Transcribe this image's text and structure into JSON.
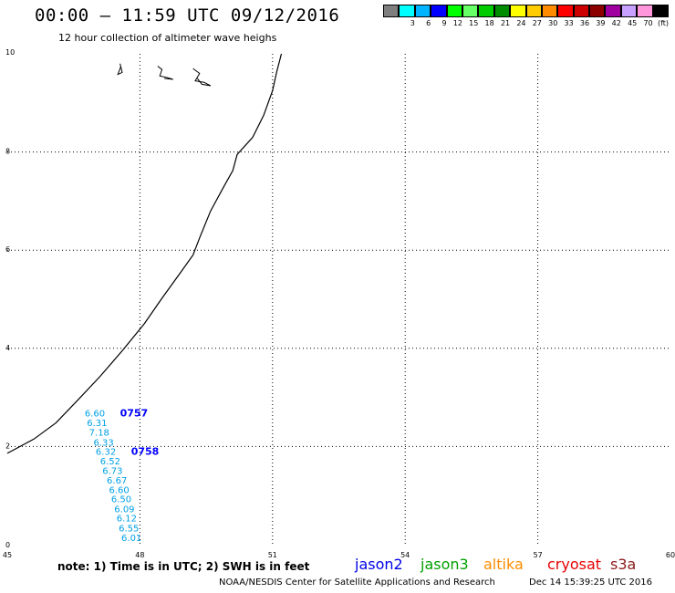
{
  "title": "00:00 — 11:59 UTC 09/12/2016",
  "subtitle": "12 hour collection of altimeter wave heighs",
  "colorbar": {
    "unit": "(ft)",
    "steps": [
      {
        "label": "",
        "color": "#7f7f7f"
      },
      {
        "label": "3",
        "color": "#00ffff"
      },
      {
        "label": "6",
        "color": "#00b4ff"
      },
      {
        "label": "9",
        "color": "#0000ff"
      },
      {
        "label": "12",
        "color": "#00ff00"
      },
      {
        "label": "15",
        "color": "#66ff66"
      },
      {
        "label": "18",
        "color": "#00cc00"
      },
      {
        "label": "21",
        "color": "#008c00"
      },
      {
        "label": "24",
        "color": "#ffff00"
      },
      {
        "label": "27",
        "color": "#ffcc00"
      },
      {
        "label": "30",
        "color": "#ff8c00"
      },
      {
        "label": "33",
        "color": "#ff0000"
      },
      {
        "label": "36",
        "color": "#cc0000"
      },
      {
        "label": "39",
        "color": "#8c0000"
      },
      {
        "label": "42",
        "color": "#a000a0"
      },
      {
        "label": "45",
        "color": "#c8a0ff"
      },
      {
        "label": "70",
        "color": "#ff96dc"
      },
      {
        "label": "(ft)",
        "color": "#000000"
      }
    ]
  },
  "map": {
    "lon_ticks": [
      "45",
      "48",
      "51",
      "54",
      "57",
      "60"
    ],
    "lat_ticks": [
      "0",
      "2",
      "4",
      "6",
      "8",
      "10"
    ],
    "grid": "dotted",
    "coastline": [
      [
        45.0,
        1.86
      ],
      [
        45.6,
        2.15
      ],
      [
        46.1,
        2.48
      ],
      [
        46.6,
        2.95
      ],
      [
        47.1,
        3.43
      ],
      [
        47.6,
        3.95
      ],
      [
        48.1,
        4.5
      ],
      [
        48.5,
        5.02
      ],
      [
        48.9,
        5.52
      ],
      [
        49.2,
        5.9
      ],
      [
        49.35,
        6.25
      ],
      [
        49.6,
        6.8
      ],
      [
        49.9,
        7.3
      ],
      [
        50.1,
        7.62
      ],
      [
        50.2,
        7.95
      ],
      [
        50.55,
        8.3
      ],
      [
        50.8,
        8.75
      ],
      [
        51.0,
        9.25
      ],
      [
        51.1,
        9.65
      ],
      [
        51.2,
        10.0
      ]
    ],
    "islands": [
      [
        [
          47.55,
          9.8
        ],
        [
          47.6,
          9.62
        ],
        [
          47.5,
          9.58
        ],
        [
          47.57,
          9.75
        ]
      ],
      [
        [
          48.4,
          9.75
        ],
        [
          48.5,
          9.68
        ],
        [
          48.45,
          9.55
        ],
        [
          48.6,
          9.52
        ],
        [
          48.75,
          9.48
        ],
        [
          48.55,
          9.5
        ]
      ],
      [
        [
          49.2,
          9.7
        ],
        [
          49.35,
          9.6
        ],
        [
          49.25,
          9.45
        ],
        [
          49.45,
          9.42
        ],
        [
          49.6,
          9.35
        ],
        [
          49.4,
          9.38
        ],
        [
          49.3,
          9.5
        ]
      ]
    ]
  },
  "observations": {
    "color": "#00a0e6",
    "values": [
      {
        "swh": "6.60",
        "lon": 46.75,
        "lat": 2.61
      },
      {
        "swh": "6.31",
        "lon": 46.8,
        "lat": 2.42
      },
      {
        "swh": "7.18",
        "lon": 46.85,
        "lat": 2.22
      },
      {
        "swh": "6.33",
        "lon": 46.95,
        "lat": 2.02
      },
      {
        "swh": "6.32",
        "lon": 47.0,
        "lat": 1.83
      },
      {
        "swh": "6.52",
        "lon": 47.1,
        "lat": 1.64
      },
      {
        "swh": "6.73",
        "lon": 47.15,
        "lat": 1.44
      },
      {
        "swh": "6.67",
        "lon": 47.25,
        "lat": 1.25
      },
      {
        "swh": "6.60",
        "lon": 47.3,
        "lat": 1.05
      },
      {
        "swh": "6.50",
        "lon": 47.35,
        "lat": 0.86
      },
      {
        "swh": "6.09",
        "lon": 47.42,
        "lat": 0.66
      },
      {
        "swh": "6.12",
        "lon": 47.47,
        "lat": 0.47
      },
      {
        "swh": "6.55",
        "lon": 47.52,
        "lat": 0.27
      },
      {
        "swh": "6.01",
        "lon": 47.58,
        "lat": 0.07
      }
    ],
    "times": [
      {
        "label": "0757",
        "lon": 47.55,
        "lat": 2.61,
        "color": "#0000ff"
      },
      {
        "label": "0758",
        "lon": 47.8,
        "lat": 1.83,
        "color": "#0000ff"
      }
    ]
  },
  "legend": {
    "note": "note: 1) Time is in UTC; 2) SWH is in feet",
    "satellites": [
      {
        "name": "jason2",
        "color": "#0000e6"
      },
      {
        "name": "jason3",
        "color": "#00a000"
      },
      {
        "name": "altika",
        "color": "#ff8c00"
      },
      {
        "name": "cryosat",
        "color": "#e60000"
      },
      {
        "name": "s3a",
        "color": "#8b1a1a"
      }
    ]
  },
  "footer": {
    "credit": "NOAA/NESDIS Center for Satellite Applications and Research",
    "stamp": "Dec 14 15:39:25 UTC 2016"
  }
}
